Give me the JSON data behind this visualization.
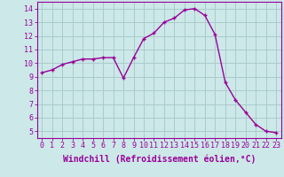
{
  "x": [
    0,
    1,
    2,
    3,
    4,
    5,
    6,
    7,
    8,
    9,
    10,
    11,
    12,
    13,
    14,
    15,
    16,
    17,
    18,
    19,
    20,
    21,
    22,
    23
  ],
  "y": [
    9.3,
    9.5,
    9.9,
    10.1,
    10.3,
    10.3,
    10.4,
    10.4,
    8.9,
    10.4,
    11.8,
    12.2,
    13.0,
    13.3,
    13.9,
    14.0,
    13.5,
    12.1,
    8.6,
    7.3,
    6.4,
    5.5,
    5.0,
    4.9
  ],
  "line_color": "#990099",
  "marker": "+",
  "marker_size": 3,
  "marker_linewidth": 1.0,
  "bg_color": "#cce8e8",
  "grid_color": "#aacccc",
  "xlabel": "Windchill (Refroidissement éolien,°C)",
  "ylabel": "",
  "xlim": [
    -0.5,
    23.5
  ],
  "ylim": [
    4.5,
    14.5
  ],
  "xticks": [
    0,
    1,
    2,
    3,
    4,
    5,
    6,
    7,
    8,
    9,
    10,
    11,
    12,
    13,
    14,
    15,
    16,
    17,
    18,
    19,
    20,
    21,
    22,
    23
  ],
  "yticks": [
    5,
    6,
    7,
    8,
    9,
    10,
    11,
    12,
    13,
    14
  ],
  "tick_label_color": "#990099",
  "tick_label_fontsize": 6,
  "xlabel_fontsize": 7,
  "xlabel_color": "#990099",
  "axis_color": "#990099",
  "line_width": 1.0
}
